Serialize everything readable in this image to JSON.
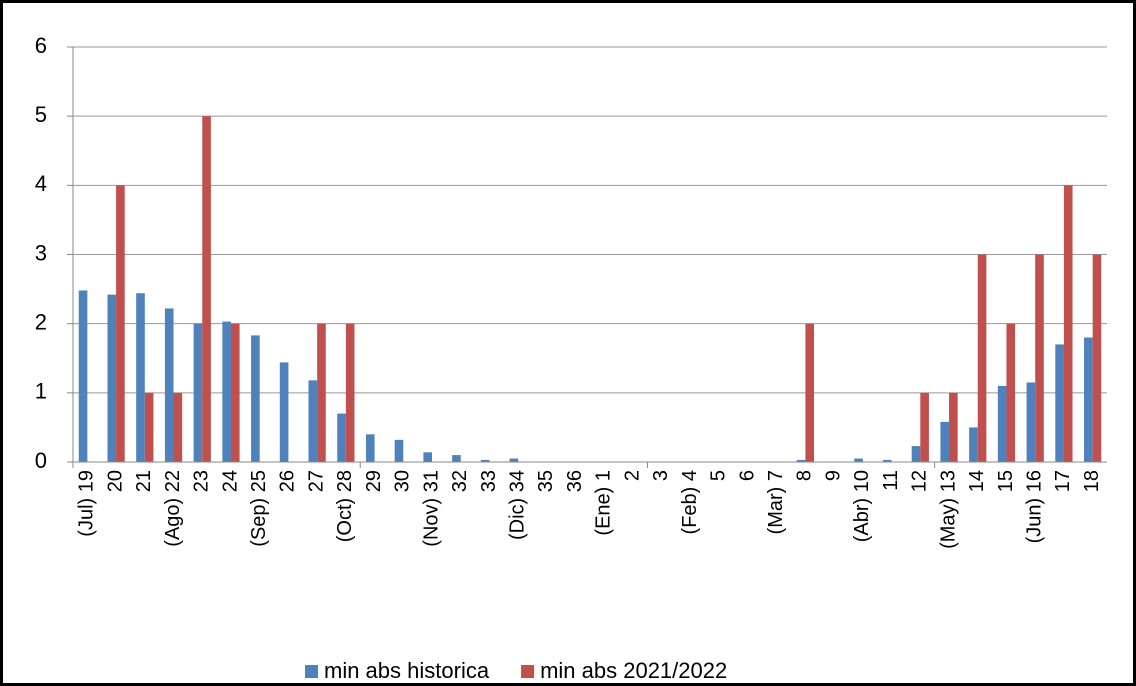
{
  "chart_data": {
    "type": "bar",
    "categories": [
      "(Jul) 19",
      "20",
      "21",
      "(Ago) 22",
      "23",
      "24",
      "(Sep) 25",
      "26",
      "27",
      "(Oct) 28",
      "29",
      "30",
      "(Nov) 31",
      "32",
      "33",
      "(Dic) 34",
      "35",
      "36",
      "(Ene) 1",
      "2",
      "3",
      "(Feb) 4",
      "5",
      "6",
      "(Mar) 7",
      "8",
      "9",
      "(Abr) 10",
      "11",
      "12",
      "(May) 13",
      "14",
      "15",
      "(Jun) 16",
      "17",
      "18"
    ],
    "series": [
      {
        "name": "min abs historica",
        "color": "#4f81bd",
        "values": [
          2.48,
          2.42,
          2.44,
          2.22,
          2.0,
          2.03,
          1.83,
          1.44,
          1.18,
          0.7,
          0.4,
          0.32,
          0.14,
          0.1,
          0.03,
          0.05,
          0,
          0,
          0,
          0,
          0,
          0,
          0,
          0,
          0,
          0.03,
          0,
          0.05,
          0.03,
          0.23,
          0.58,
          0.5,
          1.1,
          1.15,
          1.7,
          1.8
        ]
      },
      {
        "name": "min abs 2021/2022",
        "color": "#c0504d",
        "values": [
          0,
          4,
          1,
          1,
          5,
          2,
          0,
          0,
          2,
          2,
          0,
          0,
          0,
          0,
          0,
          0,
          0,
          0,
          0,
          0,
          0,
          0,
          0,
          0,
          0,
          2,
          0,
          0,
          0,
          1,
          1,
          3,
          2,
          3,
          4,
          3
        ]
      }
    ],
    "ylim": [
      0,
      6
    ],
    "yticks": [
      0,
      1,
      2,
      3,
      4,
      5,
      6
    ],
    "grid": true,
    "legend": "bottom"
  }
}
